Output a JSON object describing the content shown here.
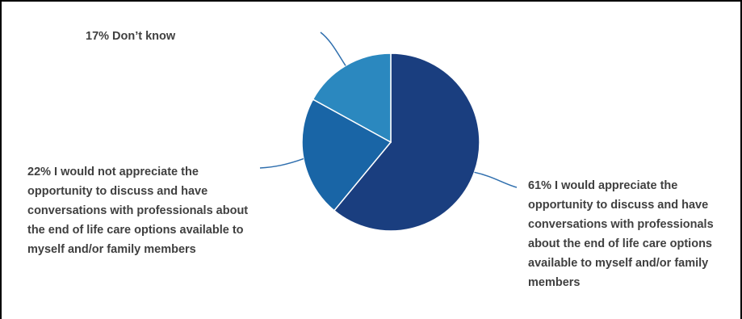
{
  "chart_data": {
    "type": "pie",
    "title": "",
    "slices": [
      {
        "label": "61% I would appreciate the opportunity to discuss and have conversations with professionals about the end of life care options available to myself and/or family members",
        "value": 61,
        "color": "#1a3e7f"
      },
      {
        "label": "22% I would not appreciate the opportunity to discuss and have conversations with professionals about the end of life care options available to myself and/or family members",
        "value": 22,
        "color": "#1965a6"
      },
      {
        "label": "17% Don’t know",
        "value": 17,
        "color": "#2b88bf"
      }
    ],
    "start_angle": "12 o'clock",
    "direction": "clockwise",
    "slice_border_color": "#ffffff",
    "leader_line_color": "#2f6fae",
    "legend": "none"
  }
}
